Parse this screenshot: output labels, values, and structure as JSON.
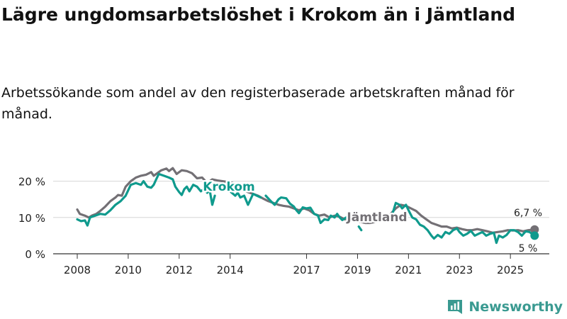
{
  "title": "Lägre ungdomsarbetslöshet i Krokom än i Jämtland",
  "subtitle": "Arbetssökande som andel av den registerbaserade arbetskraften månad för månad.",
  "brand": "Newsworthy",
  "colors": {
    "krokom": "#0f9a8d",
    "jamtland": "#737075",
    "grid": "#d6d6d6",
    "axis": "#333333"
  },
  "chart_data": {
    "type": "line",
    "title": "Lägre ungdomsarbetslöshet i Krokom än i Jämtland",
    "xlabel": "",
    "ylabel": "",
    "xlim": [
      2008,
      2025.95
    ],
    "ylim": [
      0,
      25
    ],
    "y_ticks": [
      0,
      10,
      20
    ],
    "y_tick_labels": [
      "0 %",
      "10 %",
      "20 %"
    ],
    "x_ticks": [
      2008,
      2010,
      2012,
      2014,
      2017,
      2019,
      2021,
      2023,
      2025
    ],
    "x_tick_labels": [
      "2008",
      "2010",
      "2012",
      "2014",
      "2017",
      "2019",
      "2021",
      "2023",
      "2025"
    ],
    "series": [
      {
        "name": "Jämtland",
        "label": "Jämtland",
        "end_label": "6,7 %",
        "end_value": 6.7,
        "points": [
          [
            2008.0,
            12.2
          ],
          [
            2008.1,
            11.0
          ],
          [
            2008.3,
            10.5
          ],
          [
            2008.45,
            10.0
          ],
          [
            2008.6,
            10.6
          ],
          [
            2008.75,
            11.0
          ],
          [
            2008.9,
            11.8
          ],
          [
            2009.1,
            13.0
          ],
          [
            2009.3,
            14.5
          ],
          [
            2009.5,
            15.5
          ],
          [
            2009.6,
            16.2
          ],
          [
            2009.75,
            16.0
          ],
          [
            2009.9,
            18.5
          ],
          [
            2010.1,
            20.0
          ],
          [
            2010.3,
            21.0
          ],
          [
            2010.5,
            21.5
          ],
          [
            2010.7,
            21.8
          ],
          [
            2010.9,
            22.5
          ],
          [
            2011.0,
            21.5
          ],
          [
            2011.1,
            22.0
          ],
          [
            2011.3,
            23.0
          ],
          [
            2011.5,
            23.5
          ],
          [
            2011.6,
            22.8
          ],
          [
            2011.75,
            23.6
          ],
          [
            2011.9,
            22.0
          ],
          [
            2012.1,
            23.0
          ],
          [
            2012.3,
            22.8
          ],
          [
            2012.5,
            22.2
          ],
          [
            2012.7,
            20.8
          ],
          [
            2012.9,
            21.0
          ],
          [
            2013.1,
            19.5
          ],
          [
            2013.3,
            20.5
          ],
          [
            2013.5,
            20.2
          ],
          [
            2013.7,
            20.0
          ],
          [
            2013.9,
            19.8
          ],
          [
            2014.1,
            19.5
          ],
          [
            2014.3,
            18.5
          ],
          [
            2014.5,
            17.8
          ],
          [
            2014.7,
            17.0
          ],
          [
            2014.9,
            16.5
          ],
          [
            2015.1,
            16.0
          ],
          [
            2015.3,
            15.2
          ],
          [
            2015.5,
            14.5
          ],
          [
            2015.7,
            14.0
          ],
          [
            2015.9,
            13.5
          ],
          [
            2016.1,
            13.2
          ],
          [
            2016.3,
            13.0
          ],
          [
            2016.5,
            12.5
          ],
          [
            2016.7,
            12.0
          ],
          [
            2016.9,
            12.5
          ],
          [
            2017.1,
            12.0
          ],
          [
            2017.3,
            11.0
          ],
          [
            2017.5,
            10.5
          ],
          [
            2017.7,
            10.8
          ],
          [
            2017.9,
            10.0
          ],
          [
            2018.1,
            10.5
          ],
          [
            2018.3,
            10.2
          ],
          [
            2018.5,
            9.5
          ],
          [
            2018.7,
            9.2
          ],
          [
            2018.9,
            9.0
          ],
          [
            2019.1,
            8.8
          ],
          [
            2019.3,
            8.5
          ],
          [
            2019.5,
            8.5
          ],
          [
            2019.7,
            8.8
          ],
          [
            2019.9,
            9.0
          ],
          [
            2020.1,
            9.5
          ],
          [
            2020.3,
            11.0
          ],
          [
            2020.5,
            12.5
          ],
          [
            2020.7,
            13.5
          ],
          [
            2020.9,
            13.2
          ],
          [
            2021.1,
            12.5
          ],
          [
            2021.3,
            11.8
          ],
          [
            2021.5,
            10.5
          ],
          [
            2021.7,
            9.5
          ],
          [
            2021.9,
            8.5
          ],
          [
            2022.1,
            8.0
          ],
          [
            2022.3,
            7.5
          ],
          [
            2022.5,
            7.5
          ],
          [
            2022.7,
            7.0
          ],
          [
            2022.9,
            7.2
          ],
          [
            2023.1,
            6.8
          ],
          [
            2023.3,
            6.5
          ],
          [
            2023.5,
            6.5
          ],
          [
            2023.7,
            6.8
          ],
          [
            2023.9,
            6.5
          ],
          [
            2024.1,
            6.2
          ],
          [
            2024.3,
            5.8
          ],
          [
            2024.5,
            6.0
          ],
          [
            2024.7,
            6.2
          ],
          [
            2024.9,
            6.5
          ],
          [
            2025.1,
            6.4
          ],
          [
            2025.3,
            6.5
          ],
          [
            2025.5,
            6.2
          ],
          [
            2025.7,
            6.5
          ],
          [
            2025.95,
            6.7
          ]
        ]
      },
      {
        "name": "Krokom",
        "label": "Krokom",
        "end_label": "5 %",
        "end_value": 5.0,
        "segments": [
          [
            [
              2008.0,
              9.5
            ],
            [
              2008.15,
              9.0
            ],
            [
              2008.3,
              9.2
            ],
            [
              2008.4,
              7.8
            ],
            [
              2008.5,
              10.0
            ],
            [
              2008.7,
              10.5
            ],
            [
              2008.9,
              11.0
            ],
            [
              2009.1,
              10.8
            ],
            [
              2009.3,
              12.0
            ],
            [
              2009.5,
              13.5
            ],
            [
              2009.7,
              14.5
            ],
            [
              2009.9,
              16.0
            ],
            [
              2010.1,
              19.0
            ],
            [
              2010.3,
              19.5
            ],
            [
              2010.5,
              19.0
            ],
            [
              2010.6,
              20.0
            ],
            [
              2010.75,
              18.5
            ],
            [
              2010.9,
              18.2
            ],
            [
              2011.0,
              19.0
            ],
            [
              2011.1,
              20.5
            ],
            [
              2011.2,
              22.0
            ],
            [
              2011.4,
              21.5
            ],
            [
              2011.6,
              21.0
            ],
            [
              2011.75,
              20.5
            ],
            [
              2011.85,
              18.5
            ],
            [
              2012.0,
              17.0
            ],
            [
              2012.1,
              16.2
            ],
            [
              2012.2,
              17.8
            ],
            [
              2012.3,
              18.5
            ],
            [
              2012.4,
              17.2
            ],
            [
              2012.55,
              19.0
            ],
            [
              2012.7,
              18.5
            ],
            [
              2012.85,
              17.2
            ],
            [
              2013.0,
              18.0
            ],
            [
              2013.1,
              16.8
            ],
            [
              2013.2,
              17.5
            ],
            [
              2013.3,
              13.5
            ],
            [
              2013.4,
              16.0
            ]
          ],
          [
            [
              2013.9,
              18.0
            ],
            [
              2014.0,
              17.2
            ],
            [
              2014.2,
              16.0
            ],
            [
              2014.3,
              16.8
            ],
            [
              2014.4,
              15.5
            ],
            [
              2014.55,
              16.0
            ],
            [
              2014.7,
              13.5
            ],
            [
              2014.9,
              16.5
            ],
            [
              2015.05,
              16.0
            ],
            [
              2015.2,
              15.5
            ]
          ],
          [
            [
              2015.4,
              16.0
            ],
            [
              2015.6,
              14.5
            ],
            [
              2015.75,
              13.5
            ],
            [
              2015.9,
              15.0
            ],
            [
              2016.0,
              15.5
            ],
            [
              2016.2,
              15.3
            ],
            [
              2016.35,
              13.8
            ],
            [
              2016.5,
              13.0
            ],
            [
              2016.6,
              12.0
            ],
            [
              2016.7,
              11.2
            ],
            [
              2016.85,
              12.8
            ],
            [
              2017.0,
              12.5
            ],
            [
              2017.15,
              12.7
            ],
            [
              2017.3,
              11.0
            ],
            [
              2017.45,
              10.5
            ],
            [
              2017.55,
              8.5
            ],
            [
              2017.7,
              9.5
            ],
            [
              2017.85,
              9.3
            ],
            [
              2017.95,
              10.5
            ],
            [
              2018.1,
              10.0
            ],
            [
              2018.2,
              11.0
            ],
            [
              2018.3,
              10.0
            ],
            [
              2018.4,
              9.3
            ],
            [
              2018.55,
              10.0
            ],
            [
              2018.7,
              9.5
            ]
          ],
          [
            [
              2019.05,
              7.5
            ],
            [
              2019.15,
              6.5
            ]
          ],
          [
            [
              2020.2,
              9.0
            ],
            [
              2020.35,
              10.5
            ],
            [
              2020.5,
              14.0
            ],
            [
              2020.65,
              13.5
            ],
            [
              2020.75,
              12.5
            ],
            [
              2020.9,
              13.5
            ],
            [
              2021.0,
              12.0
            ],
            [
              2021.15,
              10.0
            ],
            [
              2021.3,
              9.5
            ],
            [
              2021.45,
              8.0
            ],
            [
              2021.6,
              7.5
            ],
            [
              2021.75,
              6.5
            ],
            [
              2021.9,
              5.0
            ],
            [
              2022.0,
              4.2
            ],
            [
              2022.15,
              5.2
            ],
            [
              2022.3,
              4.5
            ],
            [
              2022.45,
              6.0
            ],
            [
              2022.6,
              5.5
            ],
            [
              2022.75,
              6.5
            ],
            [
              2022.9,
              7.0
            ],
            [
              2023.0,
              6.0
            ],
            [
              2023.15,
              5.0
            ],
            [
              2023.3,
              5.5
            ],
            [
              2023.45,
              6.3
            ],
            [
              2023.6,
              5.0
            ],
            [
              2023.75,
              5.5
            ],
            [
              2023.9,
              6.0
            ],
            [
              2024.05,
              5.0
            ],
            [
              2024.2,
              5.5
            ],
            [
              2024.35,
              5.8
            ],
            [
              2024.45,
              3.0
            ],
            [
              2024.55,
              5.0
            ],
            [
              2024.7,
              4.5
            ],
            [
              2024.85,
              5.2
            ],
            [
              2025.0,
              6.5
            ],
            [
              2025.15,
              6.5
            ],
            [
              2025.3,
              6.0
            ],
            [
              2025.45,
              5.0
            ],
            [
              2025.6,
              6.2
            ],
            [
              2025.75,
              6.0
            ],
            [
              2025.95,
              5.0
            ]
          ]
        ]
      }
    ]
  }
}
